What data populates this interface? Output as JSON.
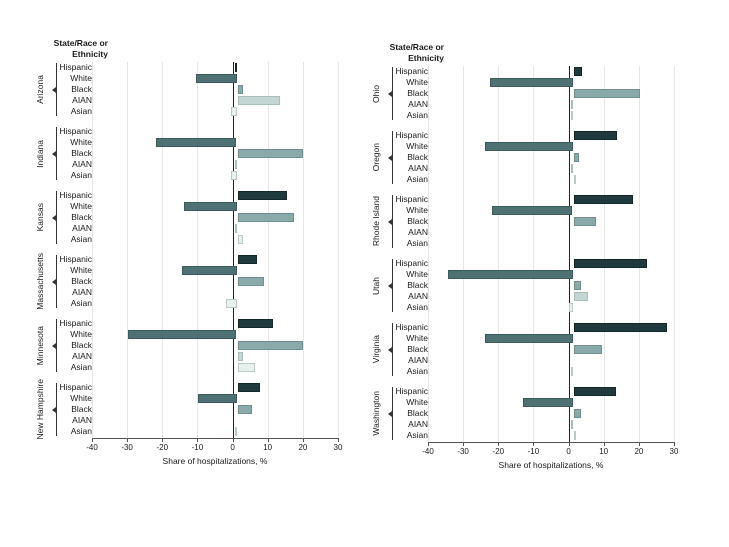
{
  "figure": {
    "header_line1": "State/Race or",
    "header_line2": "Ethnicity",
    "xlabel": "Share of hospitalizations, %",
    "x_ticks": [
      -40,
      -30,
      -20,
      -10,
      0,
      10,
      20,
      30
    ],
    "xlim": [
      -40,
      30
    ],
    "races": [
      "Hispanic",
      "White",
      "Black",
      "AIAN",
      "Asian"
    ],
    "race_colors": {
      "Hispanic": "#1f3a3c",
      "White": "#4e7174",
      "Black": "#8aa9a9",
      "AIAN": "#c4d6d3",
      "Asian": "#e8f0ee"
    },
    "race_border_colors": {
      "Hispanic": "#152829",
      "White": "#3d5a5c",
      "Black": "#6d9090",
      "AIAN": "#a8bfbc",
      "Asian": "#b9cbc8"
    },
    "gridline_color": "#e2e6e6",
    "zero_line_color": "#222222"
  },
  "chart_data": [
    {
      "type": "bar",
      "orientation": "horizontal",
      "panel": "left",
      "categories": [
        "Hispanic",
        "White",
        "Black",
        "AIAN",
        "Asian"
      ],
      "xlabel": "Share of hospitalizations, %",
      "xlim": [
        -40,
        30
      ],
      "states": [
        {
          "name": "Arizona",
          "values": [
            -0.5,
            -11.5,
            1.5,
            12,
            -1.5
          ]
        },
        {
          "name": "Indiana",
          "values": [
            0,
            -23,
            18.5,
            -0.5,
            -1.5
          ]
        },
        {
          "name": "Kansas",
          "values": [
            14,
            -15,
            16,
            -0.5,
            1.5
          ]
        },
        {
          "name": "Massachusetts",
          "values": [
            5.5,
            -15.5,
            7.5,
            0,
            -3
          ]
        },
        {
          "name": "Minnesota",
          "values": [
            10,
            -31,
            18.5,
            1.5,
            5
          ]
        },
        {
          "name": "New Hampshire",
          "values": [
            6.5,
            -11,
            4,
            0,
            -0.4
          ]
        }
      ]
    },
    {
      "type": "bar",
      "orientation": "horizontal",
      "panel": "right",
      "categories": [
        "Hispanic",
        "White",
        "Black",
        "AIAN",
        "Asian"
      ],
      "xlabel": "Share of hospitalizations, %",
      "xlim": [
        -40,
        30
      ],
      "states": [
        {
          "name": "Ohio",
          "values": [
            2.5,
            -23.5,
            19,
            -0.5,
            -0.5
          ]
        },
        {
          "name": "Oregon",
          "values": [
            12.5,
            -25,
            1.5,
            -0.4,
            0.3
          ]
        },
        {
          "name": "Rhode Island",
          "values": [
            17,
            -23,
            6.5,
            0,
            0
          ]
        },
        {
          "name": "Utah",
          "values": [
            21,
            -35.5,
            2,
            4,
            -1
          ]
        },
        {
          "name": "Virginia",
          "values": [
            26.5,
            -25,
            8,
            0,
            -0.3
          ]
        },
        {
          "name": "Washington",
          "values": [
            12,
            -14,
            2,
            -0.3,
            0.3
          ]
        }
      ]
    }
  ]
}
